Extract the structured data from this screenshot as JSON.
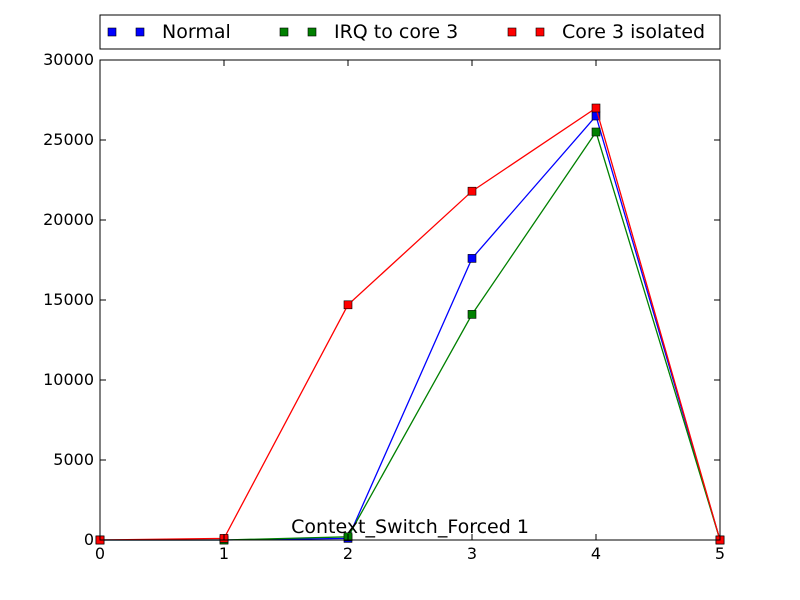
{
  "chart_data": {
    "type": "line",
    "title": "",
    "xlabel": "",
    "ylabel": "",
    "x": [
      0,
      1,
      2,
      3,
      4,
      5
    ],
    "xlim": [
      0,
      5
    ],
    "ylim": [
      0,
      30000
    ],
    "xticks": [
      0,
      1,
      2,
      3,
      4,
      5
    ],
    "yticks": [
      0,
      5000,
      10000,
      15000,
      20000,
      25000,
      30000
    ],
    "grid": false,
    "legend_position": "top",
    "annotation": "Context_Switch_Forced 1",
    "series": [
      {
        "name": "Normal",
        "color": "#0000ff",
        "marker": "square",
        "values": [
          0,
          0,
          100,
          17600,
          26500,
          0
        ]
      },
      {
        "name": "IRQ to core 3",
        "color": "#008000",
        "marker": "square",
        "values": [
          0,
          0,
          200,
          14100,
          25500,
          0
        ]
      },
      {
        "name": "Core 3 isolated",
        "color": "#ff0000",
        "marker": "square",
        "values": [
          0,
          100,
          14700,
          21800,
          27000,
          0
        ]
      }
    ]
  }
}
